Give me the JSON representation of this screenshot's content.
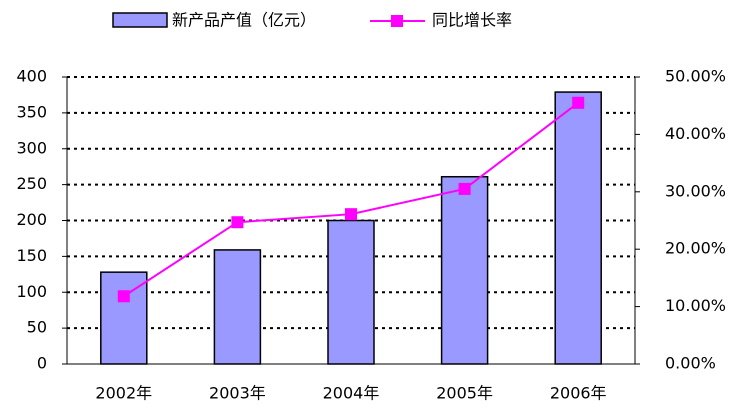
{
  "chart_data": {
    "type": "bar_line",
    "categories": [
      "2002年",
      "2003年",
      "2004年",
      "2005年",
      "2006年"
    ],
    "series": [
      {
        "name": "新产品产值（亿元）",
        "type": "bar",
        "color": "#9999ff",
        "values": [
          128,
          159,
          200,
          261,
          379
        ]
      },
      {
        "name": "同比增长率",
        "type": "line",
        "color": "#ff00ff",
        "axis": "y2",
        "values": [
          11.8,
          24.7,
          26.1,
          30.5,
          45.5
        ]
      }
    ],
    "ylim": [
      0,
      400
    ],
    "yticks": [
      0,
      50,
      100,
      150,
      200,
      250,
      300,
      350,
      400
    ],
    "y2lim": [
      0,
      50
    ],
    "y2ticks": [
      {
        "value": 0,
        "label": "0.00%"
      },
      {
        "value": 10,
        "label": "10.00%"
      },
      {
        "value": 20,
        "label": "20.00%"
      },
      {
        "value": 30,
        "label": "30.00%"
      },
      {
        "value": 40,
        "label": "40.00%"
      },
      {
        "value": 50,
        "label": "50.00%"
      }
    ],
    "grid": true,
    "legend": "top"
  }
}
